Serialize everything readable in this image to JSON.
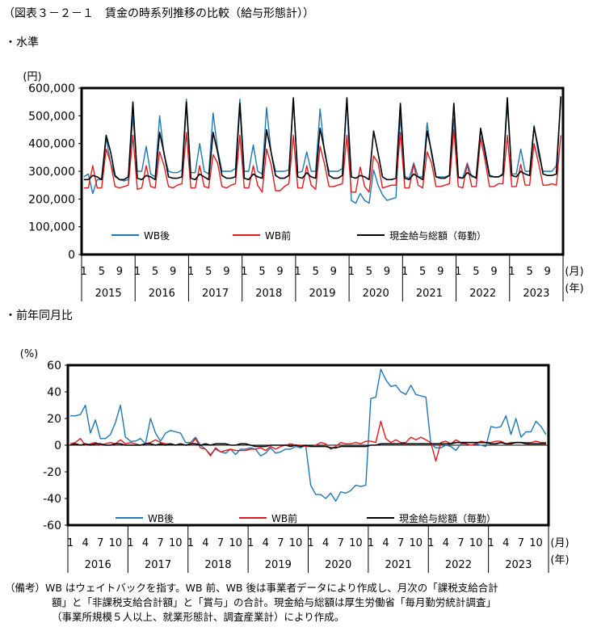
{
  "title": "（図表３－２－１　賃金の時系列推移の比較（給与形態計））",
  "panel1_label": "・水準",
  "panel2_label": "・前年同月比",
  "note": {
    "line1": "（備考）WB はウェイトバックを指す。WB 前、WB 後は事業者データにより作成し、月次の「課税支給合計",
    "line2": "額」と「非課税支給合計額」と「賞与」の合計。現金給与総額は厚生労働省「毎月勤労統計調査」",
    "line3": "（事業所規模５人以上、就業形態計、調査産業計）により作成。"
  },
  "colors": {
    "wb_after": "#1f77b4",
    "wb_before": "#e31a1c",
    "total": "#000000"
  },
  "chart_data": [
    {
      "type": "line",
      "y_unit": "(円)",
      "x_unit_month": "(月)",
      "x_unit_year": "(年)",
      "ylim": [
        0,
        600000
      ],
      "yticks": [
        "0",
        "100,000",
        "200,000",
        "300,000",
        "400,000",
        "500,000",
        "600,000"
      ],
      "month_ticks": [
        "1",
        "5",
        "9"
      ],
      "years": [
        "2015",
        "2016",
        "2017",
        "2018",
        "2019",
        "2020",
        "2021",
        "2022",
        "2023"
      ],
      "start": "2015-01",
      "end": "2023-12",
      "legend": [
        "WB後",
        "WB前",
        "現金給与総額（毎勤）"
      ],
      "series": [
        {
          "name": "WB後",
          "color": "#1f77b4",
          "values": [
            280000,
            290000,
            220000,
            270000,
            270000,
            420000,
            330000,
            280000,
            270000,
            265000,
            270000,
            500000,
            300000,
            300000,
            390000,
            290000,
            280000,
            500000,
            360000,
            300000,
            295000,
            295000,
            305000,
            560000,
            295000,
            295000,
            400000,
            300000,
            290000,
            510000,
            380000,
            300000,
            300000,
            300000,
            310000,
            560000,
            300000,
            300000,
            395000,
            300000,
            290000,
            530000,
            370000,
            300000,
            300000,
            300000,
            305000,
            560000,
            295000,
            300000,
            370000,
            300000,
            300000,
            525000,
            365000,
            300000,
            300000,
            300000,
            310000,
            560000,
            195000,
            185000,
            220000,
            195000,
            185000,
            305000,
            250000,
            215000,
            195000,
            200000,
            205000,
            505000,
            280000,
            275000,
            330000,
            280000,
            280000,
            475000,
            360000,
            280000,
            280000,
            280000,
            285000,
            490000,
            275000,
            275000,
            330000,
            280000,
            280000,
            450000,
            360000,
            280000,
            280000,
            280000,
            285000,
            545000,
            290000,
            290000,
            380000,
            300000,
            300000,
            465000,
            360000,
            300000,
            300000,
            300000,
            320000,
            555000
          ]
        },
        {
          "name": "WB前",
          "color": "#e31a1c",
          "values": [
            240000,
            240000,
            320000,
            240000,
            240000,
            380000,
            330000,
            245000,
            240000,
            245000,
            250000,
            430000,
            235000,
            240000,
            320000,
            245000,
            240000,
            370000,
            320000,
            245000,
            240000,
            250000,
            255000,
            440000,
            240000,
            240000,
            320000,
            245000,
            240000,
            360000,
            330000,
            245000,
            240000,
            250000,
            255000,
            430000,
            240000,
            240000,
            320000,
            250000,
            225000,
            380000,
            325000,
            230000,
            230000,
            245000,
            255000,
            430000,
            240000,
            240000,
            320000,
            250000,
            235000,
            390000,
            325000,
            245000,
            245000,
            250000,
            255000,
            430000,
            225000,
            225000,
            315000,
            245000,
            225000,
            355000,
            330000,
            240000,
            245000,
            250000,
            250000,
            440000,
            240000,
            240000,
            325000,
            250000,
            240000,
            370000,
            330000,
            245000,
            245000,
            250000,
            255000,
            450000,
            245000,
            240000,
            325000,
            245000,
            245000,
            420000,
            340000,
            245000,
            245000,
            255000,
            255000,
            430000,
            245000,
            245000,
            325000,
            250000,
            250000,
            400000,
            330000,
            250000,
            250000,
            255000,
            250000,
            430000
          ]
        },
        {
          "name": "現金給与総額（毎勤）",
          "color": "#000000",
          "values": [
            270000,
            270000,
            285000,
            280000,
            270000,
            430000,
            370000,
            285000,
            270000,
            270000,
            280000,
            550000,
            275000,
            270000,
            285000,
            280000,
            270000,
            440000,
            365000,
            280000,
            275000,
            275000,
            280000,
            550000,
            275000,
            270000,
            290000,
            280000,
            270000,
            440000,
            370000,
            285000,
            275000,
            275000,
            280000,
            545000,
            275000,
            270000,
            290000,
            280000,
            275000,
            450000,
            370000,
            285000,
            275000,
            275000,
            285000,
            565000,
            280000,
            275000,
            295000,
            280000,
            275000,
            455000,
            375000,
            285000,
            275000,
            275000,
            285000,
            565000,
            280000,
            275000,
            285000,
            280000,
            270000,
            445000,
            365000,
            280000,
            270000,
            270000,
            275000,
            545000,
            275000,
            270000,
            290000,
            280000,
            270000,
            445000,
            370000,
            280000,
            275000,
            275000,
            285000,
            545000,
            280000,
            275000,
            295000,
            285000,
            275000,
            455000,
            375000,
            285000,
            280000,
            280000,
            290000,
            565000,
            285000,
            280000,
            300000,
            290000,
            285000,
            460000,
            380000,
            290000,
            285000,
            285000,
            290000,
            570000
          ]
        }
      ]
    },
    {
      "type": "line",
      "y_unit": "(%)",
      "x_unit_month": "(月)",
      "x_unit_year": "(年)",
      "ylim": [
        -60,
        60
      ],
      "yticks": [
        "-60",
        "-40",
        "-20",
        "0",
        "20",
        "40",
        "60"
      ],
      "month_ticks": [
        "1",
        "4",
        "7",
        "10"
      ],
      "years": [
        "2016",
        "2017",
        "2018",
        "2019",
        "2020",
        "2021",
        "2022",
        "2023"
      ],
      "start": "2016-01",
      "end": "2023-12",
      "legend": [
        "WB後",
        "WB前",
        "現金給与総額（毎勤）"
      ],
      "series": [
        {
          "name": "WB後",
          "color": "#1f77b4",
          "values": [
            22,
            22,
            23,
            30,
            9,
            19,
            5,
            5,
            8,
            17,
            30,
            6,
            3,
            3,
            5,
            1,
            20,
            9,
            3,
            9,
            11,
            10,
            9,
            2,
            2,
            6,
            0,
            -3,
            -7,
            -3,
            -5,
            -6,
            -3,
            -7,
            -3,
            -3,
            -2,
            -3,
            -8,
            -6,
            -2,
            -6,
            -5,
            -3,
            -3,
            -1,
            -2,
            0,
            -30,
            -37,
            -37,
            -40,
            -36,
            -42,
            -35,
            -36,
            -34,
            -30,
            -31,
            -30,
            35,
            36,
            57,
            49,
            44,
            45,
            40,
            38,
            45,
            38,
            37,
            36,
            1,
            -2,
            -2,
            0,
            -1,
            -4,
            1,
            1,
            0,
            1,
            0,
            -1,
            14,
            13,
            14,
            22,
            8,
            20,
            6,
            10,
            10,
            18,
            14,
            8
          ]
        },
        {
          "name": "WB前",
          "color": "#e31a1c",
          "values": [
            1,
            2,
            5,
            0,
            1,
            2,
            0,
            1,
            2,
            1,
            4,
            1,
            2,
            1,
            0,
            1,
            2,
            4,
            2,
            1,
            1,
            0,
            1,
            0,
            0,
            5,
            -2,
            -3,
            -8,
            -2,
            -5,
            -4,
            -3,
            -4,
            -4,
            -4,
            -3,
            -3,
            -2,
            -4,
            -1,
            -3,
            -1,
            0,
            1,
            0,
            0,
            -1,
            -1,
            0,
            2,
            1,
            -3,
            -1,
            2,
            1,
            1,
            2,
            1,
            3,
            3,
            2,
            18,
            5,
            2,
            4,
            2,
            2,
            6,
            4,
            6,
            4,
            2,
            -12,
            2,
            3,
            1,
            4,
            2,
            1,
            0,
            1,
            3,
            2,
            2,
            3,
            3,
            1,
            2,
            2,
            2,
            2,
            2,
            3,
            2,
            2
          ]
        },
        {
          "name": "現金給与総額（毎勤）",
          "color": "#000000",
          "values": [
            0,
            1,
            0,
            1,
            0,
            1,
            1,
            0,
            0,
            1,
            1,
            0,
            0,
            0,
            0,
            1,
            1,
            0,
            1,
            0,
            1,
            0,
            1,
            0,
            1,
            1,
            0,
            1,
            0,
            1,
            1,
            1,
            0,
            0,
            1,
            1,
            0,
            -1,
            -1,
            -1,
            0,
            0,
            0,
            0,
            -1,
            0,
            -1,
            0,
            -1,
            -1,
            -1,
            -1,
            -2,
            -2,
            -1,
            -1,
            -1,
            -1,
            -1,
            -1,
            0,
            0,
            1,
            1,
            1,
            1,
            1,
            1,
            1,
            1,
            1,
            1,
            1,
            1,
            1,
            1,
            1,
            2,
            2,
            2,
            2,
            2,
            2,
            2,
            1,
            1,
            2,
            1,
            1,
            2,
            2,
            1,
            1,
            1,
            1,
            1
          ]
        }
      ]
    }
  ]
}
